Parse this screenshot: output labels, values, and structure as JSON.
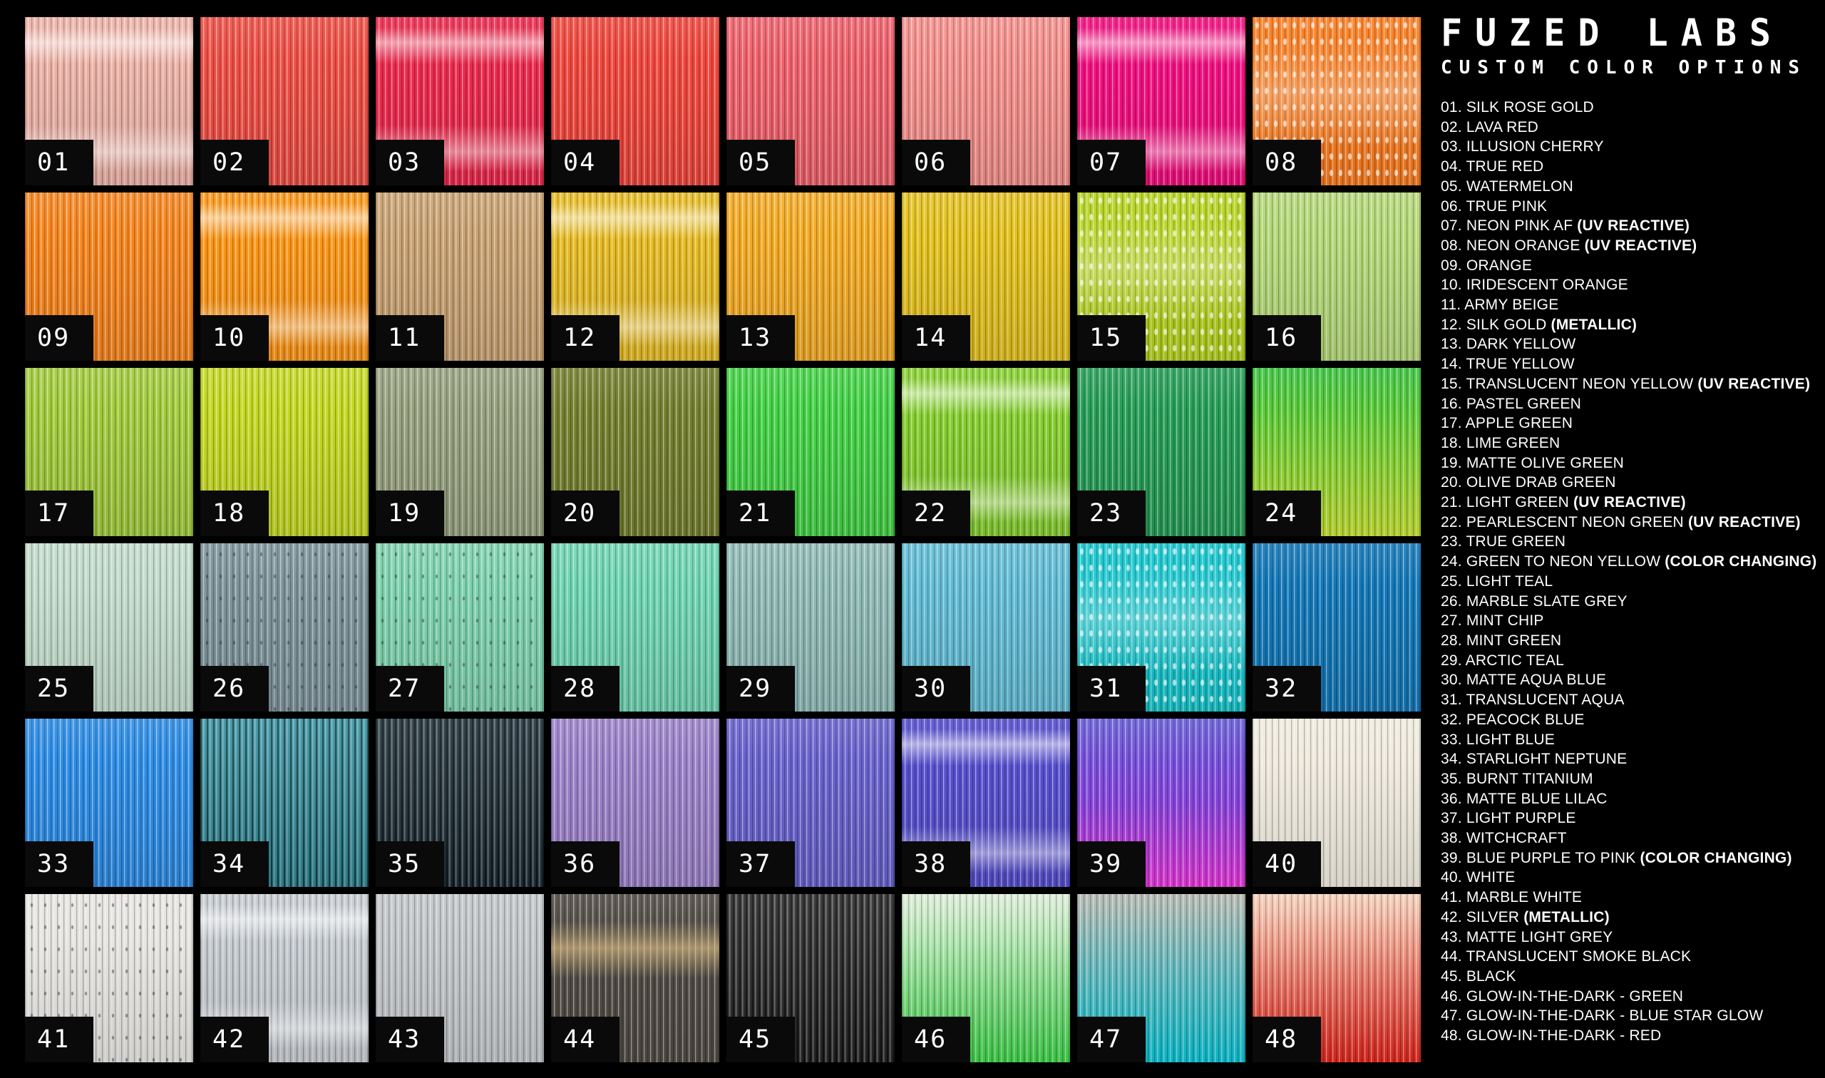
{
  "header": {
    "brand": "FUZED LABS",
    "subtitle": "CUSTOM COLOR OPTIONS"
  },
  "swatches": [
    {
      "num": "01",
      "name": "SILK ROSE GOLD",
      "tag": "",
      "colors": [
        "#edb2a7"
      ],
      "fx": "sheen"
    },
    {
      "num": "02",
      "name": "LAVA RED",
      "tag": "",
      "colors": [
        "#ef4f45"
      ],
      "fx": ""
    },
    {
      "num": "03",
      "name": "ILLUSION CHERRY",
      "tag": "",
      "colors": [
        "#ee2a4e"
      ],
      "fx": "sheen"
    },
    {
      "num": "04",
      "name": "TRUE RED",
      "tag": "",
      "colors": [
        "#f2473d"
      ],
      "fx": ""
    },
    {
      "num": "05",
      "name": "WATERMELON",
      "tag": "",
      "colors": [
        "#f0616c"
      ],
      "fx": ""
    },
    {
      "num": "06",
      "name": "TRUE PINK",
      "tag": "",
      "colors": [
        "#f5908c"
      ],
      "fx": ""
    },
    {
      "num": "07",
      "name": "NEON PINK AF",
      "tag": "UV REACTIVE",
      "colors": [
        "#f50f80"
      ],
      "fx": "sheen"
    },
    {
      "num": "08",
      "name": "NEON ORANGE",
      "tag": "UV REACTIVE",
      "colors": [
        "#fa7c1f"
      ],
      "fx": "sparkle"
    },
    {
      "num": "09",
      "name": "ORANGE",
      "tag": "",
      "colors": [
        "#f8861e"
      ],
      "fx": ""
    },
    {
      "num": "10",
      "name": "IRIDESCENT ORANGE",
      "tag": "",
      "colors": [
        "#fe9718"
      ],
      "fx": "sheen"
    },
    {
      "num": "11",
      "name": "ARMY BEIGE",
      "tag": "",
      "colors": [
        "#c9a272"
      ],
      "fx": ""
    },
    {
      "num": "12",
      "name": "SILK GOLD",
      "tag": "METALLIC",
      "colors": [
        "#e7bc25"
      ],
      "fx": "sheen"
    },
    {
      "num": "13",
      "name": "DARK YELLOW",
      "tag": "",
      "colors": [
        "#f4ab24"
      ],
      "fx": ""
    },
    {
      "num": "14",
      "name": "TRUE YELLOW",
      "tag": "",
      "colors": [
        "#e4c11e"
      ],
      "fx": ""
    },
    {
      "num": "15",
      "name": "TRANSLUCENT NEON YELLOW",
      "tag": "UV REACTIVE",
      "colors": [
        "#b5d21d"
      ],
      "fx": "sparkle"
    },
    {
      "num": "16",
      "name": "PASTEL GREEN",
      "tag": "",
      "colors": [
        "#b4d878"
      ],
      "fx": ""
    },
    {
      "num": "17",
      "name": "APPLE GREEN",
      "tag": "",
      "colors": [
        "#a2cb3c"
      ],
      "fx": ""
    },
    {
      "num": "18",
      "name": "LIME GREEN",
      "tag": "",
      "colors": [
        "#c3d822"
      ],
      "fx": ""
    },
    {
      "num": "19",
      "name": "MATTE OLIVE GREEN",
      "tag": "",
      "colors": [
        "#97a17f"
      ],
      "fx": ""
    },
    {
      "num": "20",
      "name": "OLIVE DRAB GREEN",
      "tag": "",
      "colors": [
        "#75802f"
      ],
      "fx": ""
    },
    {
      "num": "21",
      "name": "LIGHT GREEN",
      "tag": "UV REACTIVE",
      "colors": [
        "#44d246"
      ],
      "fx": ""
    },
    {
      "num": "22",
      "name": "PEARLESCENT NEON GREEN",
      "tag": "UV REACTIVE",
      "colors": [
        "#86cf30"
      ],
      "fx": "sheen"
    },
    {
      "num": "23",
      "name": "TRUE GREEN",
      "tag": "",
      "colors": [
        "#279e57"
      ],
      "fx": ""
    },
    {
      "num": "24",
      "name": "GREEN TO NEON YELLOW",
      "tag": "COLOR CHANGING",
      "colors": [
        "#36c13b",
        "#c8e432"
      ],
      "fx": ""
    },
    {
      "num": "25",
      "name": "LIGHT TEAL",
      "tag": "",
      "colors": [
        "#c2dbca"
      ],
      "fx": ""
    },
    {
      "num": "26",
      "name": "MARBLE SLATE GREY",
      "tag": "",
      "colors": [
        "#7e949b"
      ],
      "fx": "speckle"
    },
    {
      "num": "27",
      "name": "MINT CHIP",
      "tag": "",
      "colors": [
        "#7ed2ae"
      ],
      "fx": "speckle"
    },
    {
      "num": "28",
      "name": "MINT GREEN",
      "tag": "",
      "colors": [
        "#6fd5b3"
      ],
      "fx": ""
    },
    {
      "num": "29",
      "name": "ARCTIC TEAL",
      "tag": "",
      "colors": [
        "#8fbab6"
      ],
      "fx": ""
    },
    {
      "num": "30",
      "name": "MATTE AQUA BLUE",
      "tag": "",
      "colors": [
        "#62bdd5"
      ],
      "fx": ""
    },
    {
      "num": "31",
      "name": "TRANSLUCENT AQUA",
      "tag": "",
      "colors": [
        "#15c5cc"
      ],
      "fx": "sparkle"
    },
    {
      "num": "32",
      "name": "PEACOCK BLUE",
      "tag": "",
      "colors": [
        "#1478b8"
      ],
      "fx": ""
    },
    {
      "num": "33",
      "name": "LIGHT BLUE",
      "tag": "",
      "colors": [
        "#2e8de6"
      ],
      "fx": ""
    },
    {
      "num": "34",
      "name": "STARLIGHT NEPTUNE",
      "tag": "",
      "colors": [
        "#2f8f9e"
      ],
      "fx": "dark"
    },
    {
      "num": "35",
      "name": "BURNT TITANIUM",
      "tag": "",
      "colors": [
        "#1c2e38"
      ],
      "fx": "dark"
    },
    {
      "num": "36",
      "name": "MATTE BLUE LILAC",
      "tag": "",
      "colors": [
        "#9c82ca"
      ],
      "fx": ""
    },
    {
      "num": "37",
      "name": "LIGHT PURPLE",
      "tag": "",
      "colors": [
        "#6963cd"
      ],
      "fx": ""
    },
    {
      "num": "38",
      "name": "WITCHCRAFT",
      "tag": "",
      "colors": [
        "#5750ce"
      ],
      "fx": "sheen"
    },
    {
      "num": "39",
      "name": "BLUE PURPLE TO PINK",
      "tag": "COLOR CHANGING",
      "colors": [
        "#655bd6",
        "#8a45e0",
        "#ee3ae2"
      ],
      "fx": ""
    },
    {
      "num": "40",
      "name": "WHITE",
      "tag": "",
      "colors": [
        "#efeadd"
      ],
      "fx": ""
    },
    {
      "num": "41",
      "name": "MARBLE WHITE",
      "tag": "",
      "colors": [
        "#e7e5e2"
      ],
      "fx": "speckle"
    },
    {
      "num": "42",
      "name": "SILVER",
      "tag": "METALLIC",
      "colors": [
        "#c6cbd0"
      ],
      "fx": "sheen"
    },
    {
      "num": "43",
      "name": "MATTE LIGHT GREY",
      "tag": "",
      "colors": [
        "#c2c5c8"
      ],
      "fx": ""
    },
    {
      "num": "44",
      "name": "TRANSLUCENT SMOKE BLACK",
      "tag": "",
      "colors": [
        "#514c45"
      ],
      "fx": "gold-sheen"
    },
    {
      "num": "45",
      "name": "BLACK",
      "tag": "",
      "colors": [
        "#242424"
      ],
      "fx": "dark"
    },
    {
      "num": "46",
      "name": "GLOW-IN-THE-DARK - GREEN",
      "tag": "",
      "colors": [
        "#dcecd7",
        "#3fd64a"
      ],
      "fx": ""
    },
    {
      "num": "47",
      "name": "GLOW-IN-THE-DARK - BLUE STAR GLOW",
      "tag": "",
      "colors": [
        "#b2b5ad",
        "#0bc7d9"
      ],
      "fx": ""
    },
    {
      "num": "48",
      "name": "GLOW-IN-THE-DARK - RED",
      "tag": "",
      "colors": [
        "#f4cfb8",
        "#e7271d"
      ],
      "fx": ""
    }
  ]
}
